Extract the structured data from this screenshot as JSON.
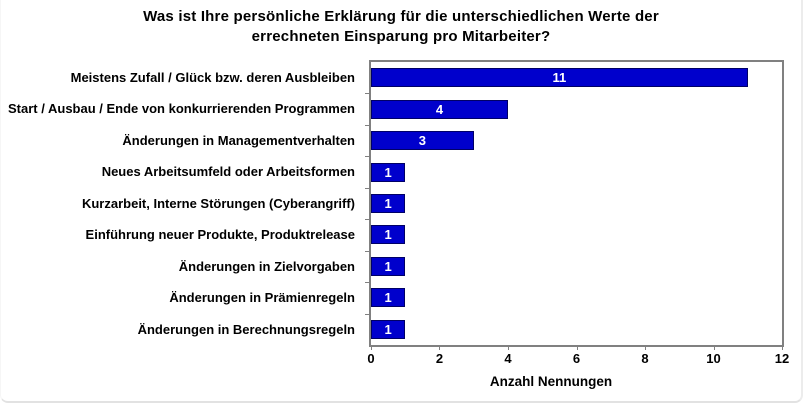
{
  "chart_data": {
    "type": "bar",
    "orientation": "horizontal",
    "title": "Was ist Ihre persönliche Erklärung für die unterschiedlichen Werte der errechneten Einsparung pro Mitarbeiter?",
    "title_lines": [
      "Was ist Ihre persönliche Erklärung für die unterschiedlichen Werte der",
      "errechneten Einsparung pro Mitarbeiter?"
    ],
    "categories": [
      "Meistens Zufall / Glück bzw. deren Ausbleiben",
      "Start / Ausbau / Ende von konkurrierenden Programmen",
      "Änderungen in Managementverhalten",
      "Neues Arbeitsumfeld oder Arbeitsformen",
      "Kurzarbeit, Interne Störungen (Cyberangriff)",
      "Einführung neuer Produkte, Produktrelease",
      "Änderungen in Zielvorgaben",
      "Änderungen in Prämienregeln",
      "Änderungen in Berechnungsregeln"
    ],
    "values": [
      11,
      4,
      3,
      1,
      1,
      1,
      1,
      1,
      1
    ],
    "value_labels": [
      "11",
      "4",
      "3",
      "1",
      "1",
      "1",
      "1",
      "1",
      "1"
    ],
    "xlabel": "Anzahl Nennungen",
    "ylabel": "",
    "xlim": [
      0,
      12
    ],
    "xticks": [
      "0",
      "2",
      "4",
      "6",
      "8",
      "10",
      "12"
    ],
    "grid": false,
    "legend": null,
    "bar_color": "#0000CC",
    "bar_border_color": "#000066",
    "value_label_color": "#FFFFFF",
    "plot_border_color": "#808080",
    "background_color": "#FFFFFF"
  }
}
